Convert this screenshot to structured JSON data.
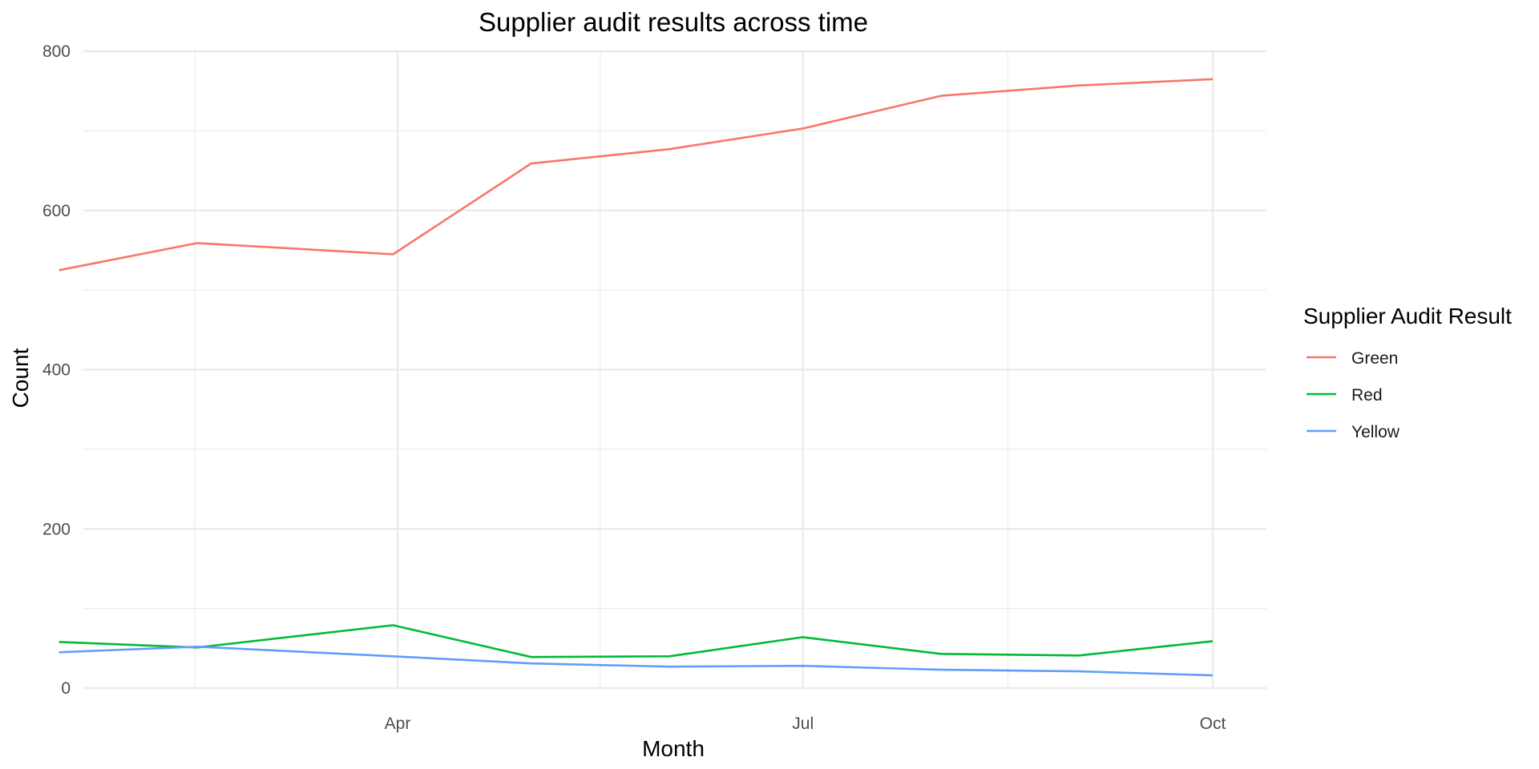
{
  "chart_data": {
    "type": "line",
    "title": "Supplier audit results across time",
    "xlabel": "Month",
    "ylabel": "Count",
    "ylim": [
      0,
      800
    ],
    "y_ticks": [
      0,
      200,
      400,
      600,
      800
    ],
    "x_tick_labels": [
      "Apr",
      "Jul",
      "Oct"
    ],
    "x": [
      "2023-01-15",
      "2023-02-15",
      "2023-03-31",
      "2023-05-01",
      "2023-06-01",
      "2023-07-01",
      "2023-08-01",
      "2023-09-01",
      "2023-10-01"
    ],
    "series": [
      {
        "name": "Green",
        "color": "#F8766D",
        "values": [
          525,
          559,
          545,
          659,
          677,
          703,
          744,
          757,
          765
        ]
      },
      {
        "name": "Red",
        "color": "#00BA38",
        "values": [
          58,
          51,
          79,
          39,
          40,
          64,
          43,
          41,
          59
        ]
      },
      {
        "name": "Yellow",
        "color": "#619CFF",
        "values": [
          45,
          52,
          40,
          31,
          27,
          28,
          23,
          21,
          16
        ]
      }
    ],
    "legend": {
      "title": "Supplier Audit Result",
      "position": "right"
    },
    "grid": true
  }
}
